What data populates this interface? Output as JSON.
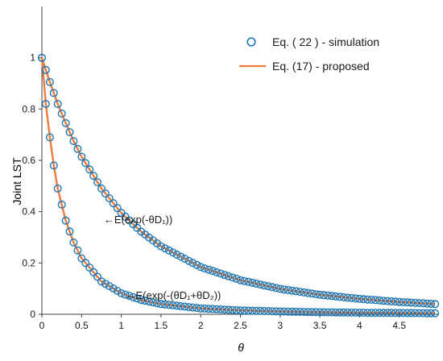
{
  "colors": {
    "simulation": "#1f77b4",
    "proposed": "#f07b3f",
    "axis": "#404040",
    "text": "#1a1a1a"
  },
  "chart_data": {
    "type": "line",
    "title": "",
    "xlabel": "θ",
    "ylabel": "Joint LST",
    "xlim": [
      0,
      5
    ],
    "ylim": [
      0,
      1.2
    ],
    "grid": false,
    "legend_position": "top-right",
    "x_ticks": [
      0,
      0.5,
      1,
      1.5,
      2,
      2.5,
      3,
      3.5,
      4,
      4.5
    ],
    "x_tick_labels": [
      "0",
      "0.5",
      "1",
      "1.5",
      "2",
      "2.5",
      "3",
      "3.5",
      "4",
      "4.5"
    ],
    "y_ticks": [
      0,
      0.2,
      0.4,
      0.6,
      0.8,
      1
    ],
    "y_tick_labels": [
      "0",
      "0.2",
      "0.4",
      "0.6",
      "0.8",
      "1"
    ],
    "legend": [
      {
        "label": "Eq. ( 22 ) - simulation",
        "marker": "circle"
      },
      {
        "label": "Eq. (17) - proposed",
        "marker": "line"
      }
    ],
    "series": [
      {
        "curve": "upper",
        "x": [
          0,
          0.1,
          0.2,
          0.3,
          0.4,
          0.5,
          0.75,
          1,
          1.25,
          1.5,
          2,
          2.5,
          3,
          3.5,
          4,
          4.5,
          4.95
        ],
        "y": [
          1,
          0.905,
          0.82,
          0.745,
          0.675,
          0.614,
          0.49,
          0.395,
          0.322,
          0.265,
          0.184,
          0.133,
          0.099,
          0.076,
          0.06,
          0.048,
          0.04
        ]
      },
      {
        "curve": "lower",
        "x": [
          0,
          0.05,
          0.1,
          0.15,
          0.2,
          0.3,
          0.4,
          0.5,
          0.75,
          1,
          1.25,
          1.5,
          2,
          2.5,
          3,
          3.5,
          4,
          4.5,
          4.95
        ],
        "y": [
          1,
          0.82,
          0.69,
          0.58,
          0.49,
          0.365,
          0.28,
          0.218,
          0.128,
          0.082,
          0.056,
          0.04,
          0.023,
          0.015,
          0.011,
          0.008,
          0.006,
          0.005,
          0.004
        ]
      }
    ],
    "annotations": [
      {
        "text": "←E(exp(-θD₁))",
        "x": 0.78,
        "y": 0.37
      },
      {
        "text": "←E(exp(-(θD₁+θD₂))",
        "x": 1.05,
        "y": 0.075
      }
    ]
  }
}
